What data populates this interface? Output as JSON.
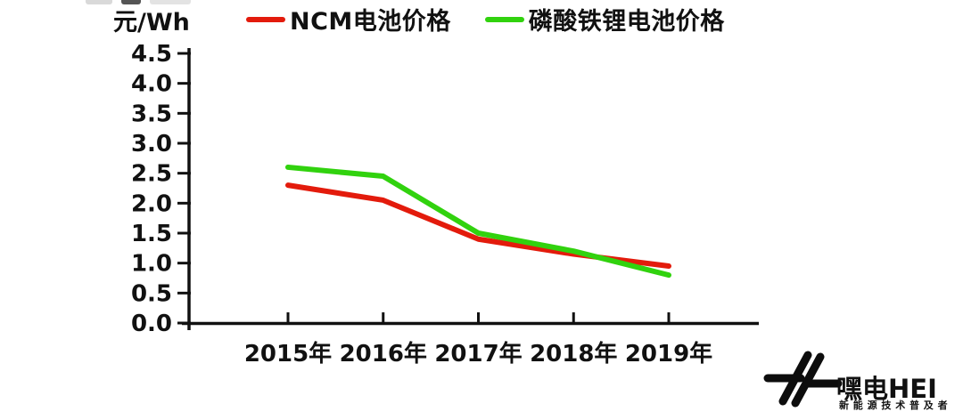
{
  "header": {
    "unit_label": "元/Wh"
  },
  "legend": {
    "items": [
      {
        "label": "NCM电池价格",
        "color": "#e31b0c"
      },
      {
        "label": "磷酸铁锂电池价格",
        "color": "#31d20e"
      }
    ]
  },
  "chart_data": {
    "type": "line",
    "title": "",
    "ylabel": "元/Wh",
    "xlabel": "",
    "categories": [
      "2015年",
      "2016年",
      "2017年",
      "2018年",
      "2019年"
    ],
    "series": [
      {
        "name": "NCM电池价格",
        "color": "#e31b0c",
        "values": [
          2.3,
          2.05,
          1.4,
          1.15,
          0.95
        ]
      },
      {
        "name": "磷酸铁锂电池价格",
        "color": "#31d20e",
        "values": [
          2.6,
          2.45,
          1.5,
          1.2,
          0.8
        ]
      }
    ],
    "ylim": [
      0,
      4.5
    ],
    "ytick_step": 0.5,
    "yticks": [
      "4.5",
      "4.0",
      "3.5",
      "3.0",
      "2.5",
      "2.0",
      "1.5",
      "1.0",
      "0.5",
      "0.0"
    ],
    "grid": false,
    "legend_position": "top",
    "axis_color": "#111111"
  },
  "logo": {
    "brand": "嘿电HEI",
    "tagline": "新能源技术普及者"
  }
}
